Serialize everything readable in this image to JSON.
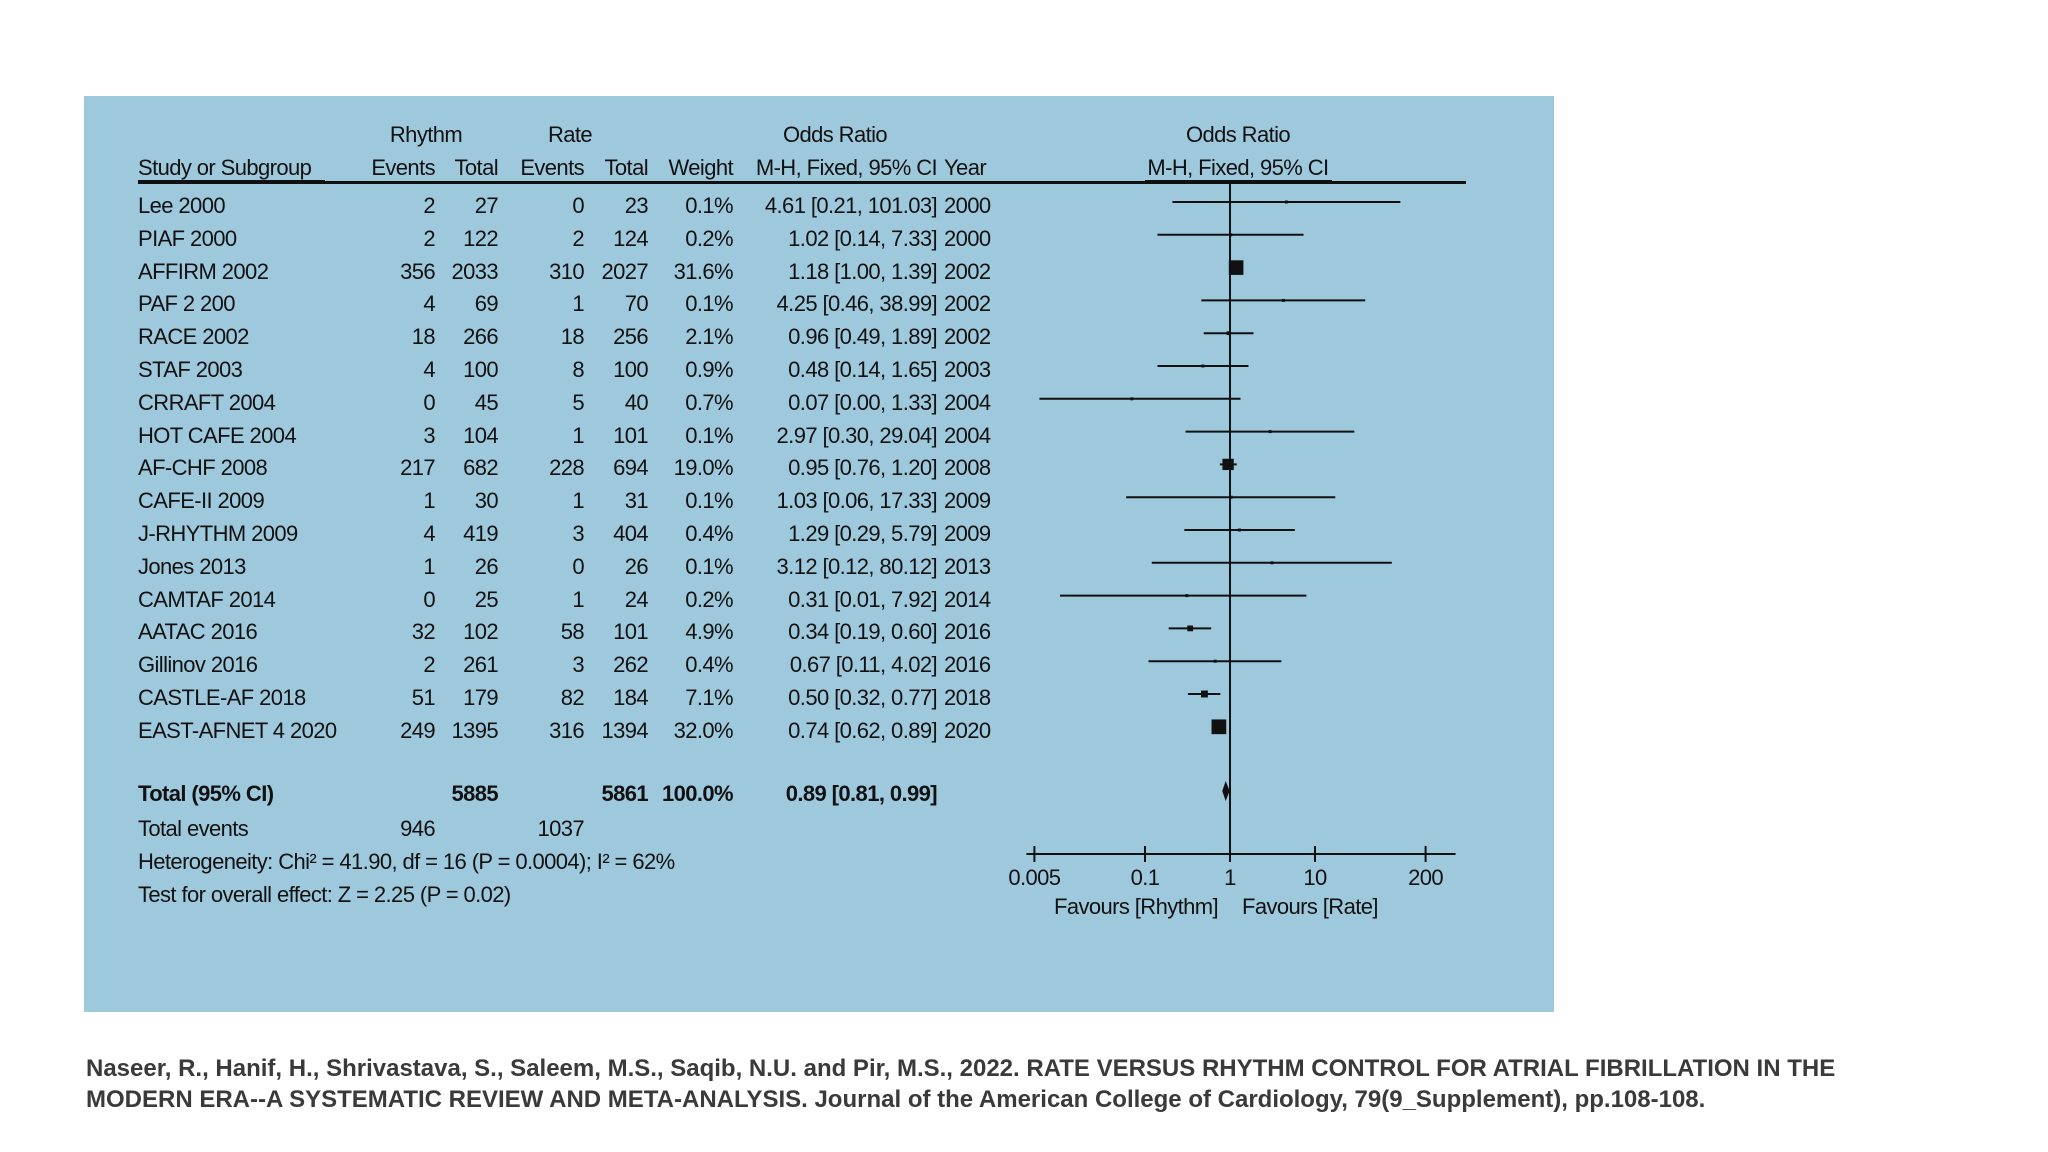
{
  "header": {
    "study": "Study or Subgroup",
    "rhythm": "Rhythm",
    "rate": "Rate",
    "events": "Events",
    "total": "Total",
    "weight": "Weight",
    "or_title": "Odds Ratio",
    "or_method": "M-H, Fixed, 95% CI",
    "year": "Year",
    "plot_title": "Odds Ratio",
    "plot_method": "M-H, Fixed, 95% CI"
  },
  "studies": [
    {
      "name": "Lee 2000",
      "re": "2",
      "rt": "27",
      "te": "0",
      "tt": "23",
      "weight": "0.1%",
      "ci": "4.61 [0.21, 101.03]",
      "year": "2000"
    },
    {
      "name": "PIAF 2000",
      "re": "2",
      "rt": "122",
      "te": "2",
      "tt": "124",
      "weight": "0.2%",
      "ci": "1.02 [0.14, 7.33]",
      "year": "2000"
    },
    {
      "name": "AFFIRM 2002",
      "re": "356",
      "rt": "2033",
      "te": "310",
      "tt": "2027",
      "weight": "31.6%",
      "ci": "1.18 [1.00, 1.39]",
      "year": "2002"
    },
    {
      "name": "PAF 2 200",
      "re": "4",
      "rt": "69",
      "te": "1",
      "tt": "70",
      "weight": "0.1%",
      "ci": "4.25 [0.46, 38.99]",
      "year": "2002"
    },
    {
      "name": "RACE 2002",
      "re": "18",
      "rt": "266",
      "te": "18",
      "tt": "256",
      "weight": "2.1%",
      "ci": "0.96 [0.49, 1.89]",
      "year": "2002"
    },
    {
      "name": "STAF 2003",
      "re": "4",
      "rt": "100",
      "te": "8",
      "tt": "100",
      "weight": "0.9%",
      "ci": "0.48 [0.14, 1.65]",
      "year": "2003"
    },
    {
      "name": "CRRAFT 2004",
      "re": "0",
      "rt": "45",
      "te": "5",
      "tt": "40",
      "weight": "0.7%",
      "ci": "0.07 [0.00, 1.33]",
      "year": "2004"
    },
    {
      "name": "HOT CAFE 2004",
      "re": "3",
      "rt": "104",
      "te": "1",
      "tt": "101",
      "weight": "0.1%",
      "ci": "2.97 [0.30, 29.04]",
      "year": "2004"
    },
    {
      "name": "AF-CHF 2008",
      "re": "217",
      "rt": "682",
      "te": "228",
      "tt": "694",
      "weight": "19.0%",
      "ci": "0.95 [0.76, 1.20]",
      "year": "2008"
    },
    {
      "name": "CAFE-II 2009",
      "re": "1",
      "rt": "30",
      "te": "1",
      "tt": "31",
      "weight": "0.1%",
      "ci": "1.03 [0.06, 17.33]",
      "year": "2009"
    },
    {
      "name": "J-RHYTHM 2009",
      "re": "4",
      "rt": "419",
      "te": "3",
      "tt": "404",
      "weight": "0.4%",
      "ci": "1.29 [0.29, 5.79]",
      "year": "2009"
    },
    {
      "name": "Jones 2013",
      "re": "1",
      "rt": "26",
      "te": "0",
      "tt": "26",
      "weight": "0.1%",
      "ci": "3.12 [0.12, 80.12]",
      "year": "2013"
    },
    {
      "name": "CAMTAF 2014",
      "re": "0",
      "rt": "25",
      "te": "1",
      "tt": "24",
      "weight": "0.2%",
      "ci": "0.31 [0.01, 7.92]",
      "year": "2014"
    },
    {
      "name": "AATAC 2016",
      "re": "32",
      "rt": "102",
      "te": "58",
      "tt": "101",
      "weight": "4.9%",
      "ci": "0.34 [0.19, 0.60]",
      "year": "2016"
    },
    {
      "name": "Gillinov 2016",
      "re": "2",
      "rt": "261",
      "te": "3",
      "tt": "262",
      "weight": "0.4%",
      "ci": "0.67 [0.11, 4.02]",
      "year": "2016"
    },
    {
      "name": "CASTLE-AF 2018",
      "re": "51",
      "rt": "179",
      "te": "82",
      "tt": "184",
      "weight": "7.1%",
      "ci": "0.50 [0.32, 0.77]",
      "year": "2018"
    },
    {
      "name": "EAST-AFNET 4 2020",
      "re": "249",
      "rt": "1395",
      "te": "316",
      "tt": "1394",
      "weight": "32.0%",
      "ci": "0.74 [0.62, 0.89]",
      "year": "2020"
    }
  ],
  "total": {
    "label": "Total (95% CI)",
    "rt": "5885",
    "tt": "5861",
    "weight": "100.0%",
    "ci": "0.89 [0.81, 0.99]",
    "events_label": "Total events",
    "re": "946",
    "te": "1037"
  },
  "heterogeneity": "Heterogeneity: Chi² = 41.90, df = 16 (P = 0.0004); I² = 62%",
  "overall_effect": "Test for overall effect: Z = 2.25 (P = 0.02)",
  "axis": {
    "ticks": [
      "0.005",
      "0.1",
      "1",
      "10",
      "200"
    ],
    "favours_left": "Favours [Rhythm]",
    "favours_right": "Favours [Rate]"
  },
  "citation": "Naseer, R., Hanif, H., Shrivastava, S., Saleem, M.S., Saqib, N.U. and Pir, M.S., 2022. RATE VERSUS RHYTHM CONTROL FOR ATRIAL FIBRILLATION IN THE MODERN ERA--A SYSTEMATIC REVIEW AND META-ANALYSIS. Journal of the American College of Cardiology, 79(9_Supplement), pp.108-108.",
  "chart_data": {
    "type": "forest",
    "x_scale": "log",
    "xlim": [
      0.005,
      200
    ],
    "x_ticks": [
      0.005,
      0.1,
      1,
      10,
      200
    ],
    "null_line": 1,
    "series": [
      {
        "study": "Lee 2000",
        "or": 4.61,
        "lo": 0.21,
        "hi": 101.03,
        "weight": 0.1
      },
      {
        "study": "PIAF 2000",
        "or": 1.02,
        "lo": 0.14,
        "hi": 7.33,
        "weight": 0.2
      },
      {
        "study": "AFFIRM 2002",
        "or": 1.18,
        "lo": 1.0,
        "hi": 1.39,
        "weight": 31.6
      },
      {
        "study": "PAF 2 200",
        "or": 4.25,
        "lo": 0.46,
        "hi": 38.99,
        "weight": 0.1
      },
      {
        "study": "RACE 2002",
        "or": 0.96,
        "lo": 0.49,
        "hi": 1.89,
        "weight": 2.1
      },
      {
        "study": "STAF 2003",
        "or": 0.48,
        "lo": 0.14,
        "hi": 1.65,
        "weight": 0.9
      },
      {
        "study": "CRRAFT 2004",
        "or": 0.07,
        "lo": 0.0,
        "hi": 1.33,
        "weight": 0.7
      },
      {
        "study": "HOT CAFE 2004",
        "or": 2.97,
        "lo": 0.3,
        "hi": 29.04,
        "weight": 0.1
      },
      {
        "study": "AF-CHF 2008",
        "or": 0.95,
        "lo": 0.76,
        "hi": 1.2,
        "weight": 19.0
      },
      {
        "study": "CAFE-II 2009",
        "or": 1.03,
        "lo": 0.06,
        "hi": 17.33,
        "weight": 0.1
      },
      {
        "study": "J-RHYTHM 2009",
        "or": 1.29,
        "lo": 0.29,
        "hi": 5.79,
        "weight": 0.4
      },
      {
        "study": "Jones 2013",
        "or": 3.12,
        "lo": 0.12,
        "hi": 80.12,
        "weight": 0.1
      },
      {
        "study": "CAMTAF 2014",
        "or": 0.31,
        "lo": 0.01,
        "hi": 7.92,
        "weight": 0.2
      },
      {
        "study": "AATAC 2016",
        "or": 0.34,
        "lo": 0.19,
        "hi": 0.6,
        "weight": 4.9
      },
      {
        "study": "Gillinov 2016",
        "or": 0.67,
        "lo": 0.11,
        "hi": 4.02,
        "weight": 0.4
      },
      {
        "study": "CASTLE-AF 2018",
        "or": 0.5,
        "lo": 0.32,
        "hi": 0.77,
        "weight": 7.1
      },
      {
        "study": "EAST-AFNET 4 2020",
        "or": 0.74,
        "lo": 0.62,
        "hi": 0.89,
        "weight": 32.0
      }
    ],
    "pooled": {
      "or": 0.89,
      "lo": 0.81,
      "hi": 0.99
    }
  }
}
